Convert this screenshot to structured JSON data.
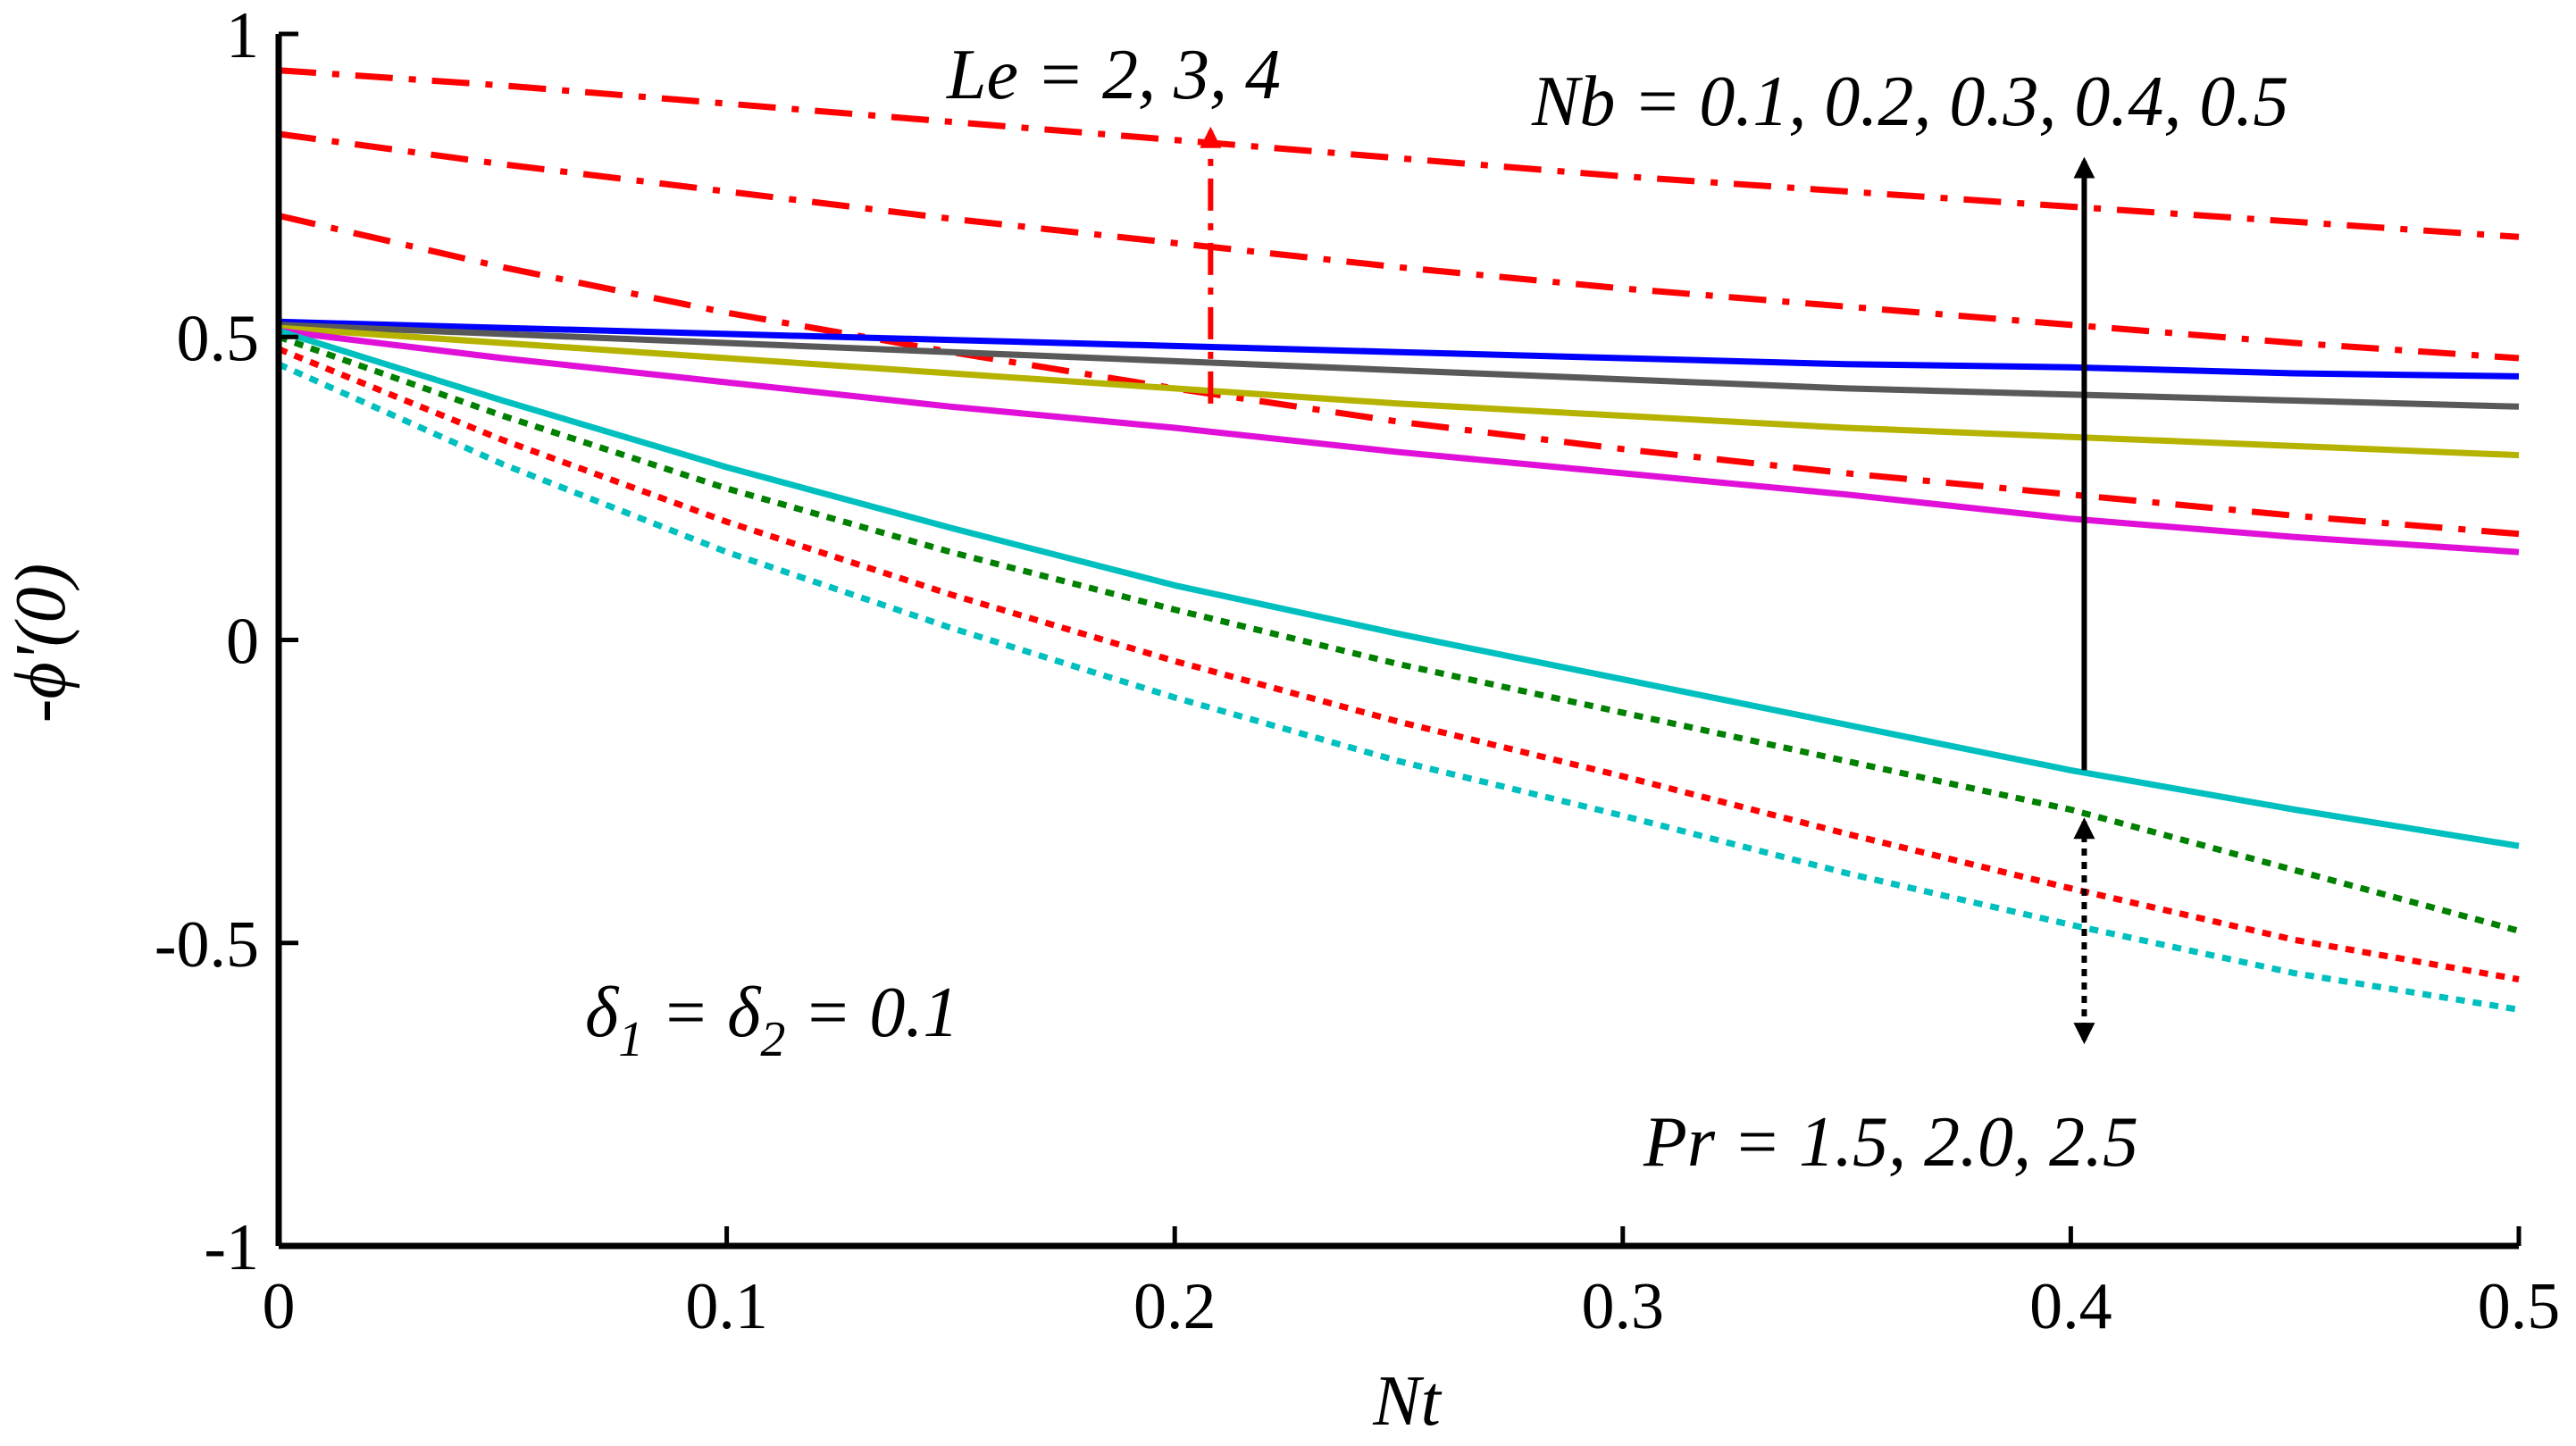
{
  "chart_data": {
    "type": "line",
    "title": "",
    "xlabel": "Nt",
    "ylabel": "-ϕ'(0)",
    "xlim": [
      0,
      0.5
    ],
    "ylim": [
      -1,
      1
    ],
    "grid": false,
    "x_ticks": [
      "0",
      "0.1",
      "0.2",
      "0.3",
      "0.4",
      "0.5"
    ],
    "y_ticks": [
      "-1",
      "-0.5",
      "0",
      "0.5",
      "1"
    ],
    "x_tick_values": [
      0,
      0.1,
      0.2,
      0.3,
      0.4,
      0.5
    ],
    "y_tick_values": [
      -1,
      -0.5,
      0,
      0.5,
      1
    ],
    "x": [
      0,
      0.05,
      0.1,
      0.15,
      0.2,
      0.25,
      0.3,
      0.35,
      0.4,
      0.45,
      0.5
    ],
    "series": [
      {
        "name": "Le = 4",
        "group": "Le",
        "color": "#ff0000",
        "style": "dashdot",
        "values": [
          0.94,
          0.915,
          0.885,
          0.855,
          0.825,
          0.795,
          0.765,
          0.74,
          0.715,
          0.69,
          0.665
        ]
      },
      {
        "name": "Le = 3",
        "group": "Le",
        "color": "#ff0000",
        "style": "dashdot",
        "values": [
          0.835,
          0.785,
          0.74,
          0.695,
          0.655,
          0.615,
          0.58,
          0.55,
          0.52,
          0.49,
          0.465
        ]
      },
      {
        "name": "Le = 2",
        "group": "Le",
        "color": "#ff0000",
        "style": "dashdot",
        "values": [
          0.7,
          0.615,
          0.54,
          0.475,
          0.415,
          0.36,
          0.315,
          0.275,
          0.24,
          0.205,
          0.175
        ]
      },
      {
        "name": "Nb = 0.5",
        "group": "Nb",
        "color": "#0000ff",
        "style": "solid",
        "values": [
          0.525,
          0.515,
          0.505,
          0.495,
          0.485,
          0.475,
          0.465,
          0.455,
          0.45,
          0.44,
          0.435
        ]
      },
      {
        "name": "Nb = 0.4",
        "group": "Nb",
        "color": "#595959",
        "style": "solid",
        "values": [
          0.52,
          0.505,
          0.49,
          0.475,
          0.46,
          0.445,
          0.43,
          0.415,
          0.405,
          0.395,
          0.385
        ]
      },
      {
        "name": "Nb = 0.3",
        "group": "Nb",
        "color": "#b5b300",
        "style": "solid",
        "values": [
          0.515,
          0.49,
          0.465,
          0.44,
          0.415,
          0.39,
          0.37,
          0.35,
          0.335,
          0.32,
          0.305
        ]
      },
      {
        "name": "Nb = 0.2",
        "group": "Nb",
        "color": "#e010d8",
        "style": "solid",
        "values": [
          0.51,
          0.465,
          0.425,
          0.385,
          0.35,
          0.31,
          0.275,
          0.24,
          0.2,
          0.17,
          0.145
        ]
      },
      {
        "name": "Nb = 0.1",
        "group": "Nb",
        "color": "#00bfbf",
        "style": "solid",
        "values": [
          0.51,
          0.395,
          0.285,
          0.185,
          0.09,
          0.01,
          -0.065,
          -0.14,
          -0.215,
          -0.28,
          -0.34
        ]
      },
      {
        "name": "Pr = 1.5",
        "group": "Pr",
        "color": "#008000",
        "style": "dotted",
        "values": [
          0.5,
          0.37,
          0.25,
          0.145,
          0.05,
          -0.04,
          -0.12,
          -0.2,
          -0.28,
          -0.38,
          -0.48
        ]
      },
      {
        "name": "Pr = 2.0",
        "group": "Pr",
        "color": "#ff0000",
        "style": "dotted",
        "values": [
          0.48,
          0.33,
          0.195,
          0.075,
          -0.035,
          -0.135,
          -0.225,
          -0.32,
          -0.41,
          -0.495,
          -0.56
        ]
      },
      {
        "name": "Pr = 2.5",
        "group": "Pr",
        "color": "#00bfbf",
        "style": "dotted",
        "values": [
          0.455,
          0.29,
          0.145,
          0.02,
          -0.095,
          -0.2,
          -0.29,
          -0.385,
          -0.47,
          -0.55,
          -0.61
        ]
      }
    ],
    "annotations": {
      "le": "Le = 2, 3, 4",
      "nb": "Nb = 0.1, 0.2, 0.3, 0.4, 0.5",
      "pr": "Pr = 1.5, 2.0, 2.5",
      "delta_sym": "δ",
      "delta_sub1": "1",
      "delta_eq1": " = ",
      "delta_sub2": "2",
      "delta_eq2": " = 0.1"
    },
    "arrows": [
      {
        "name": "le-arrow",
        "x": 0.208,
        "from": 0.39,
        "to": 0.84,
        "color": "#ff0000",
        "style": "dashdot",
        "heads": "end"
      },
      {
        "name": "nb-arrow",
        "x": 0.403,
        "from": -0.215,
        "to": 0.79,
        "color": "#000000",
        "style": "solid",
        "heads": "end"
      },
      {
        "name": "pr-arrow",
        "x": 0.403,
        "from": -0.3,
        "to": -0.66,
        "color": "#000000",
        "style": "dotted",
        "heads": "both"
      }
    ]
  }
}
